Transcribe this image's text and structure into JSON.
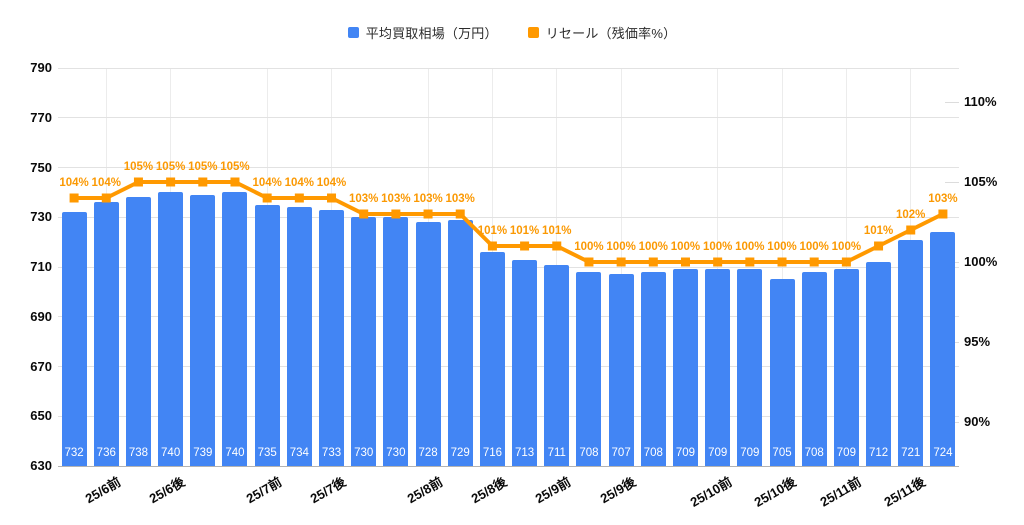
{
  "chart_data": {
    "type": "bar",
    "subtype": "combo-bar-line",
    "title": "",
    "xlabel": "",
    "ylabel": "",
    "grid": {
      "horizontal": true,
      "vertical_at_labeled_categories": true
    },
    "legend_position": "top-center",
    "x_tick_labels": [
      {
        "bar_index": 1,
        "label": "25/6前"
      },
      {
        "bar_index": 3,
        "label": "25/6後"
      },
      {
        "bar_index": 6,
        "label": "25/7前"
      },
      {
        "bar_index": 8,
        "label": "25/7後"
      },
      {
        "bar_index": 11,
        "label": "25/8前"
      },
      {
        "bar_index": 13,
        "label": "25/8後"
      },
      {
        "bar_index": 15,
        "label": "25/9前"
      },
      {
        "bar_index": 17,
        "label": "25/9後"
      },
      {
        "bar_index": 20,
        "label": "25/10前"
      },
      {
        "bar_index": 22,
        "label": "25/10後"
      },
      {
        "bar_index": 24,
        "label": "25/11前"
      },
      {
        "bar_index": 26,
        "label": "25/11後"
      }
    ],
    "series": [
      {
        "name": "平均買取相場（万円）",
        "type": "bar",
        "axis": "left",
        "color": "#4285F4",
        "value_label_color": "#ffffff",
        "values": [
          732,
          736,
          738,
          740,
          739,
          740,
          735,
          734,
          733,
          730,
          730,
          728,
          729,
          716,
          713,
          711,
          708,
          707,
          708,
          709,
          709,
          709,
          705,
          708,
          709,
          712,
          721,
          724
        ]
      },
      {
        "name": "リセール（残価率%）",
        "type": "line",
        "axis": "right",
        "color": "#FF9900",
        "label_suffix": "%",
        "values": [
          104,
          104,
          105,
          105,
          105,
          105,
          104,
          104,
          104,
          103,
          103,
          103,
          103,
          101,
          101,
          101,
          100,
          100,
          100,
          100,
          100,
          100,
          100,
          100,
          100,
          101,
          102,
          103
        ]
      }
    ],
    "left_axis": {
      "min": 630,
      "max": 790,
      "ticks": [
        790,
        770,
        750,
        730,
        710,
        690,
        670,
        650,
        630
      ]
    },
    "right_axis": {
      "suffix": "%",
      "ticks": [
        110,
        105,
        100,
        95,
        90
      ]
    },
    "colors": {
      "grid": "#e2e2e2",
      "baseline": "#b3b3b3",
      "axis_text": "#0a0a0a",
      "point_label": "#FB9903"
    }
  }
}
